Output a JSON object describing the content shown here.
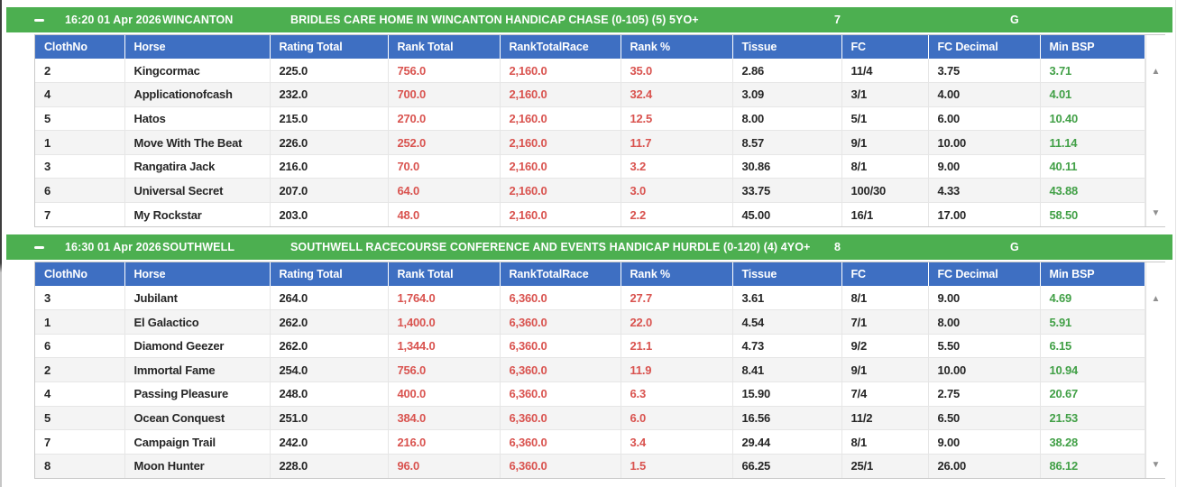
{
  "theme": {
    "header_green": "#4caf50",
    "grid_blue": "#3e6fc2",
    "neg_red": "#d9534f",
    "pos_green": "#42a047"
  },
  "icons": {
    "collapse": "minus-dash",
    "scroll_up": "▲",
    "scroll_down": "▼"
  },
  "grid": {
    "headers": [
      "ClothNo",
      "Horse",
      "Rating Total",
      "Rank Total",
      "RankTotalRace",
      "Rank %",
      "Tissue",
      "FC",
      "FC Decimal",
      "Min BSP"
    ]
  },
  "races": [
    {
      "time": "16:20 01 Apr 2026",
      "course": "WINCANTON",
      "title": "BRIDLES CARE HOME IN WINCANTON HANDICAP CHASE (0-105) (5) 5YO+",
      "field_size": "7",
      "going": "G",
      "rows": [
        [
          "2",
          "Kingcormac",
          "225.0",
          "756.0",
          "2,160.0",
          "35.0",
          "2.86",
          "11/4",
          "3.75",
          "3.71"
        ],
        [
          "4",
          "Applicationofcash",
          "232.0",
          "700.0",
          "2,160.0",
          "32.4",
          "3.09",
          "3/1",
          "4.00",
          "4.01"
        ],
        [
          "5",
          "Hatos",
          "215.0",
          "270.0",
          "2,160.0",
          "12.5",
          "8.00",
          "5/1",
          "6.00",
          "10.40"
        ],
        [
          "1",
          "Move With The Beat",
          "226.0",
          "252.0",
          "2,160.0",
          "11.7",
          "8.57",
          "9/1",
          "10.00",
          "11.14"
        ],
        [
          "3",
          "Rangatira Jack",
          "216.0",
          "70.0",
          "2,160.0",
          "3.2",
          "30.86",
          "8/1",
          "9.00",
          "40.11"
        ],
        [
          "6",
          "Universal Secret",
          "207.0",
          "64.0",
          "2,160.0",
          "3.0",
          "33.75",
          "100/30",
          "4.33",
          "43.88"
        ],
        [
          "7",
          "My Rockstar",
          "203.0",
          "48.0",
          "2,160.0",
          "2.2",
          "45.00",
          "16/1",
          "17.00",
          "58.50"
        ]
      ]
    },
    {
      "time": "16:30 01 Apr 2026",
      "course": "SOUTHWELL",
      "title": "SOUTHWELL RACECOURSE CONFERENCE AND EVENTS HANDICAP HURDLE (0-120) (4) 4YO+",
      "field_size": "8",
      "going": "G",
      "rows": [
        [
          "3",
          "Jubilant",
          "264.0",
          "1,764.0",
          "6,360.0",
          "27.7",
          "3.61",
          "8/1",
          "9.00",
          "4.69"
        ],
        [
          "1",
          "El Galactico",
          "262.0",
          "1,400.0",
          "6,360.0",
          "22.0",
          "4.54",
          "7/1",
          "8.00",
          "5.91"
        ],
        [
          "6",
          "Diamond Geezer",
          "262.0",
          "1,344.0",
          "6,360.0",
          "21.1",
          "4.73",
          "9/2",
          "5.50",
          "6.15"
        ],
        [
          "2",
          "Immortal Fame",
          "254.0",
          "756.0",
          "6,360.0",
          "11.9",
          "8.41",
          "9/1",
          "10.00",
          "10.94"
        ],
        [
          "4",
          "Passing Pleasure",
          "248.0",
          "400.0",
          "6,360.0",
          "6.3",
          "15.90",
          "7/4",
          "2.75",
          "20.67"
        ],
        [
          "5",
          "Ocean Conquest",
          "251.0",
          "384.0",
          "6,360.0",
          "6.0",
          "16.56",
          "11/2",
          "6.50",
          "21.53"
        ],
        [
          "7",
          "Campaign Trail",
          "242.0",
          "216.0",
          "6,360.0",
          "3.4",
          "29.44",
          "8/1",
          "9.00",
          "38.28"
        ],
        [
          "8",
          "Moon Hunter",
          "228.0",
          "96.0",
          "6,360.0",
          "1.5",
          "66.25",
          "25/1",
          "26.00",
          "86.12"
        ]
      ]
    }
  ]
}
